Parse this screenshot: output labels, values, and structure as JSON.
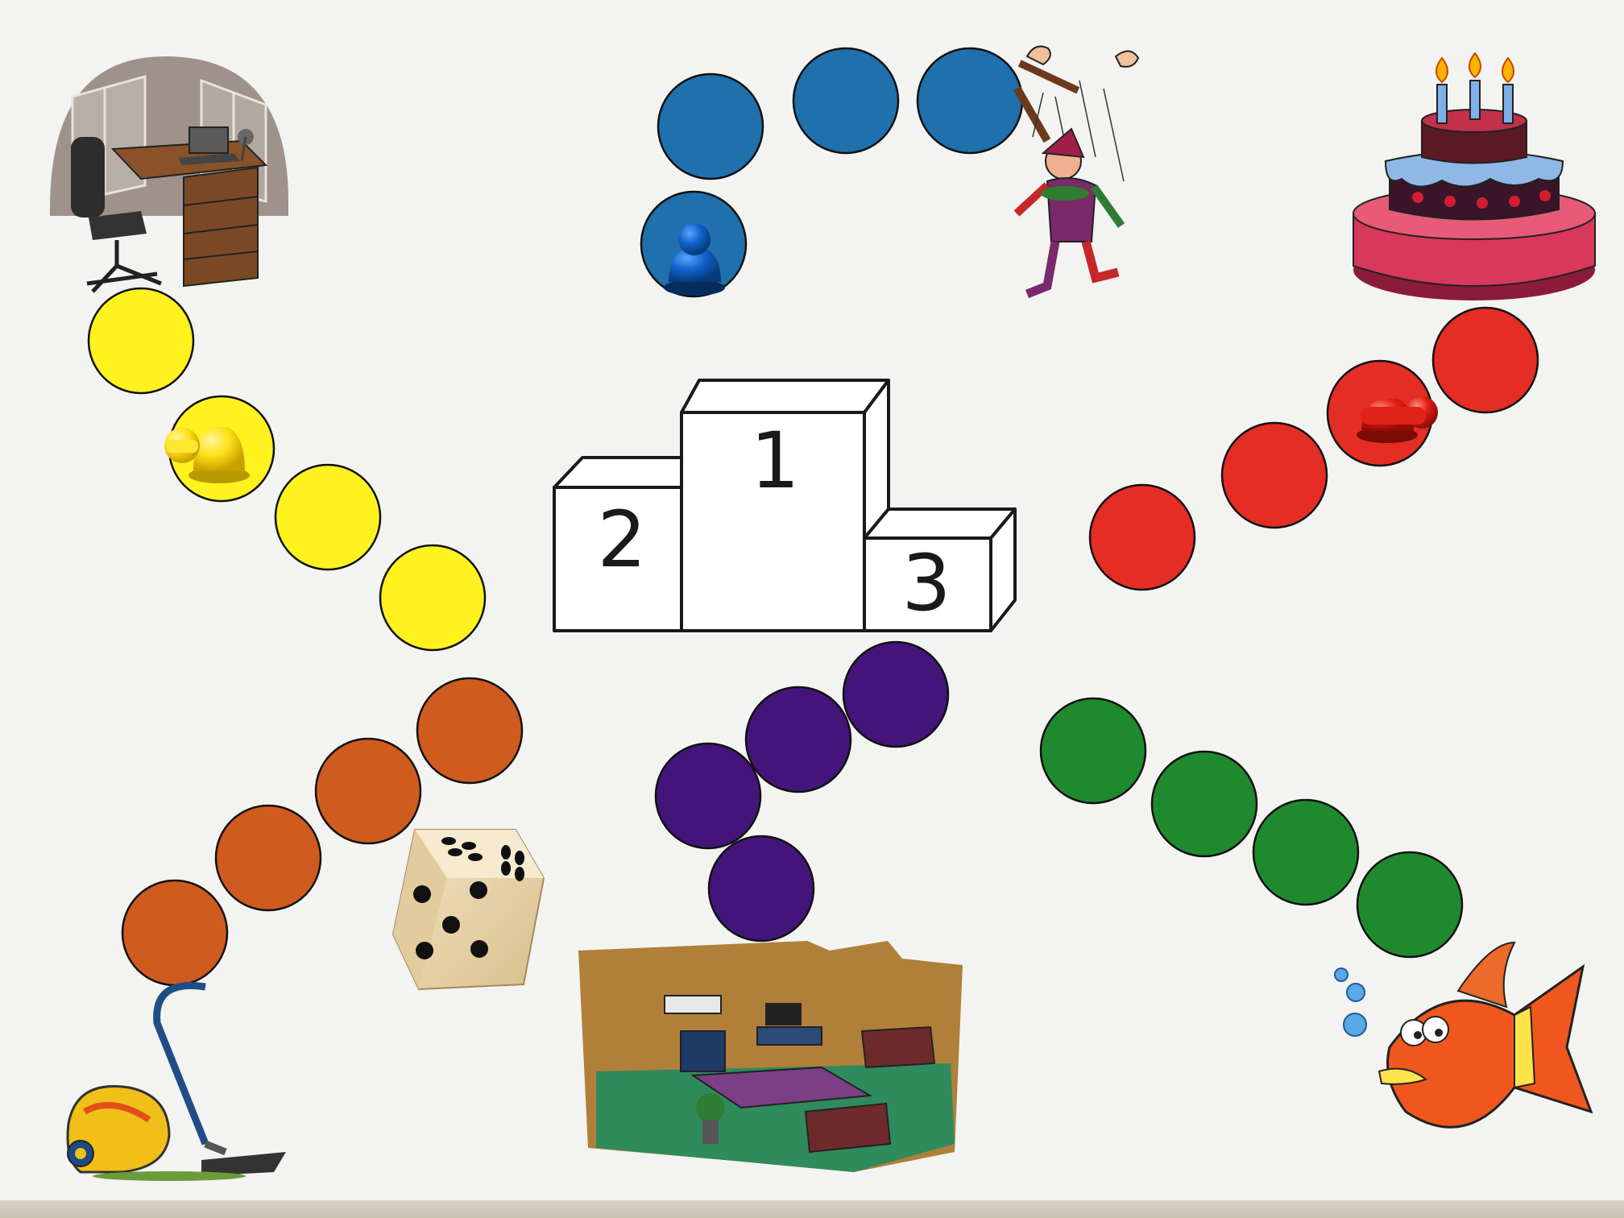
{
  "podium": {
    "first_label": "1",
    "second_label": "2",
    "third_label": "3"
  },
  "colors": {
    "paper": "#f3f3f1",
    "yellow": "#fff21f",
    "orange": "#cf5b1e",
    "blue": "#1f70ac",
    "purple": "#43157a",
    "red": "#e42d24",
    "green": "#1f8a2d",
    "outline": "#111111"
  },
  "tracks": [
    {
      "name": "yellow-track",
      "color": "yellow",
      "picture": "office-desk-icon",
      "spaces": 4
    },
    {
      "name": "orange-track",
      "color": "orange",
      "picture": "vacuum-cleaner-icon",
      "spaces": 4
    },
    {
      "name": "blue-track",
      "color": "blue",
      "picture": "puppet-icon",
      "spaces": 4
    },
    {
      "name": "purple-track",
      "color": "purple",
      "picture": "living-room-icon",
      "spaces": 4
    },
    {
      "name": "red-track",
      "color": "red",
      "picture": "birthday-cake-icon",
      "spaces": 4
    },
    {
      "name": "green-track",
      "color": "green",
      "picture": "fish-icon",
      "spaces": 4
    }
  ],
  "pawns": [
    {
      "name": "yellow-pawn",
      "color": "yellow",
      "on_space": 2
    },
    {
      "name": "blue-pawn",
      "color": "blue",
      "on_space": 1
    },
    {
      "name": "red-pawn",
      "color": "red",
      "on_space": 2
    }
  ],
  "die": {
    "top_face": 5,
    "visible_side_faces": [
      4,
      4
    ]
  }
}
